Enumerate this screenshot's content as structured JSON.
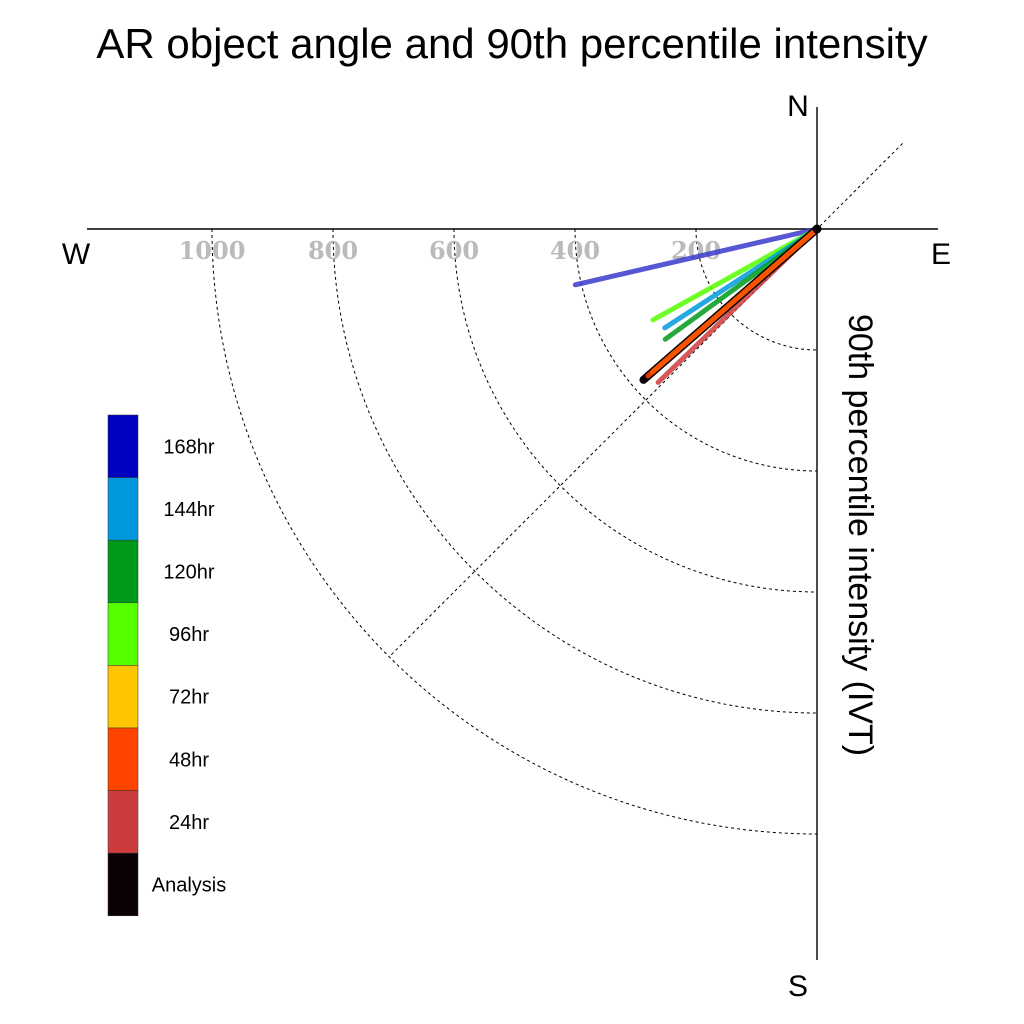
{
  "chart_data": {
    "type": "polar-vector",
    "title": "AR object angle and 90th percentile intensity",
    "ylabel": "90th percentile intensity (IVT)",
    "directions": {
      "north": "N",
      "south": "S",
      "east": "E",
      "west": "W"
    },
    "radial_ticks": [
      200,
      400,
      600,
      800,
      1000
    ],
    "radial_tick_labels": [
      "200",
      "400",
      "600",
      "800",
      "1000"
    ],
    "radial_range": [
      0,
      1200
    ],
    "grid": true,
    "legend_placement": "left",
    "legend": [
      {
        "label": "168hr",
        "color": "#0000c0"
      },
      {
        "label": "144hr",
        "color": "#0099dd"
      },
      {
        "label": "120hr",
        "color": "#009a1a"
      },
      {
        "label": "96hr",
        "color": "#55ff00"
      },
      {
        "label": "72hr",
        "color": "#ffc500"
      },
      {
        "label": "48hr",
        "color": "#ff4400"
      },
      {
        "label": "24hr",
        "color": "#cc3c3c"
      },
      {
        "label": "Analysis",
        "color": "#0a0005"
      }
    ],
    "series": [
      {
        "name": "168hr",
        "angle_deg": 257,
        "intensity": 410,
        "color": "#3a3acc"
      },
      {
        "name": "96hr",
        "angle_deg": 241,
        "intensity": 310,
        "color": "#55ff00"
      },
      {
        "name": "144hr",
        "angle_deg": 237,
        "intensity": 300,
        "color": "#0099dd"
      },
      {
        "name": "120hr",
        "angle_deg": 234,
        "intensity": 310,
        "color": "#009a1a"
      },
      {
        "name": "24hr",
        "angle_deg": 226,
        "intensity": 365,
        "color": "#cc3c3c"
      },
      {
        "name": "Analysis",
        "angle_deg": 229,
        "intensity": 380,
        "color": "#0a0005"
      },
      {
        "name": "72hr",
        "angle_deg": 229,
        "intensity": 360,
        "color": "#ffc500"
      },
      {
        "name": "48hr",
        "angle_deg": 229,
        "intensity": 370,
        "color": "#ff4400"
      }
    ]
  }
}
